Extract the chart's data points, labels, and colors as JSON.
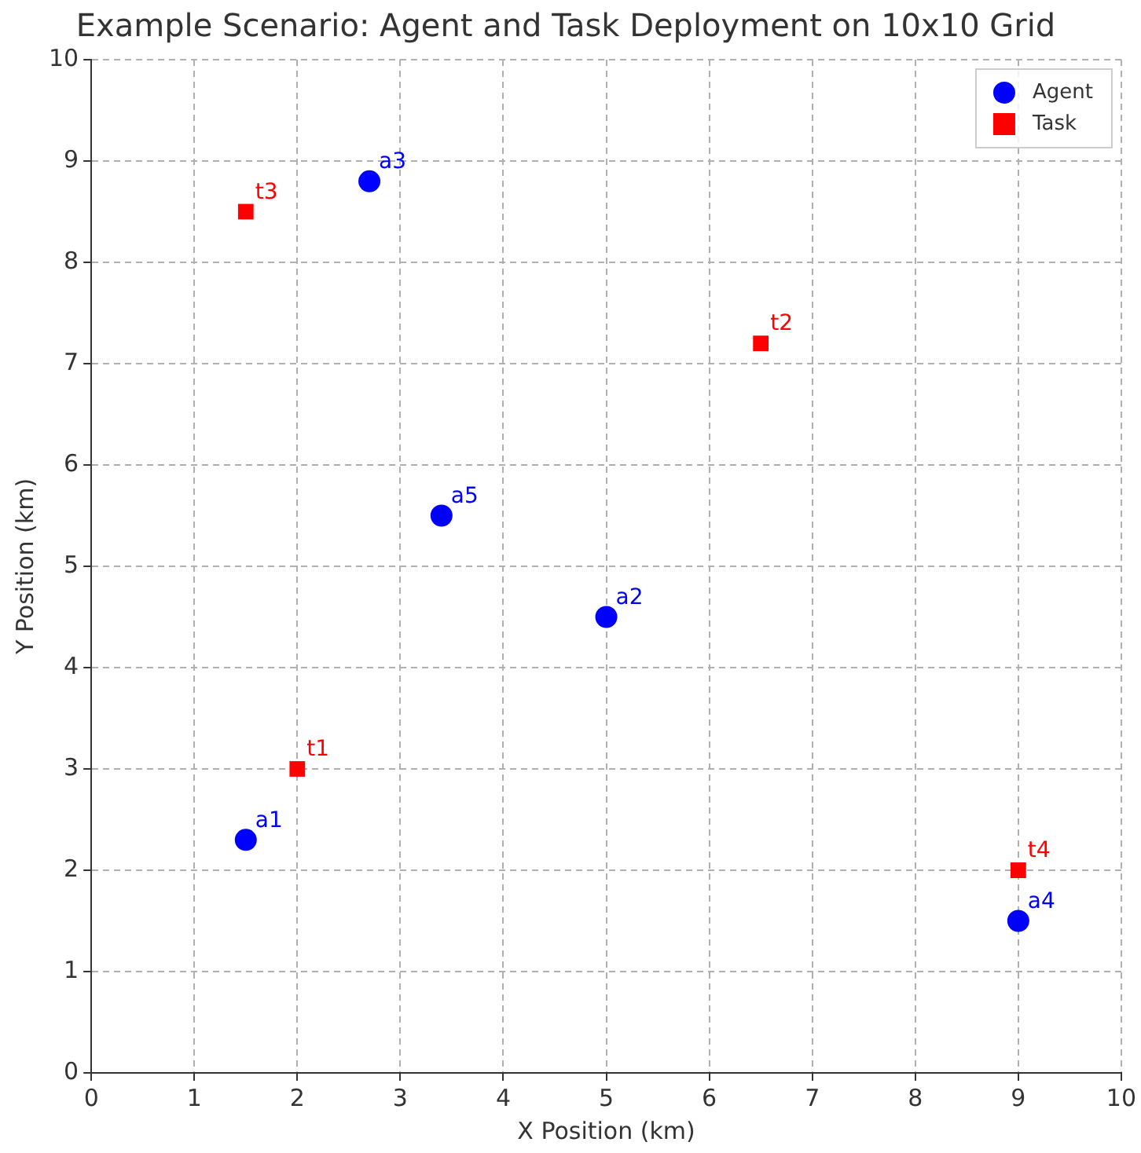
{
  "chart_data": {
    "type": "scatter",
    "title": "Example Scenario: Agent and Task Deployment on 10x10 Grid",
    "xlabel": "X Position (km)",
    "ylabel": "Y Position (km)",
    "series": [
      {
        "name": "Agent",
        "color": "#0000ff",
        "marker": "circle",
        "x": [
          1.5,
          5,
          2.7,
          9,
          3.4
        ],
        "values": [
          2.3,
          4.5,
          8.8,
          1.5,
          5.5
        ],
        "value_labels": [
          "a1",
          "a2",
          "a3",
          "a4",
          "a5"
        ]
      },
      {
        "name": "Task",
        "color": "#ff0000",
        "marker": "square",
        "x": [
          2,
          6.5,
          1.5,
          9
        ],
        "values": [
          3,
          7.2,
          8.5,
          2
        ],
        "value_labels": [
          "t1",
          "t2",
          "t3",
          "t4"
        ]
      }
    ],
    "xlim": [
      0,
      10
    ],
    "ylim": [
      0,
      10
    ],
    "xticks": [
      0,
      1,
      2,
      3,
      4,
      5,
      6,
      7,
      8,
      9,
      10
    ],
    "yticks": [
      0,
      1,
      2,
      3,
      4,
      5,
      6,
      7,
      8,
      9,
      10
    ],
    "grid": true,
    "legend": "top right"
  }
}
